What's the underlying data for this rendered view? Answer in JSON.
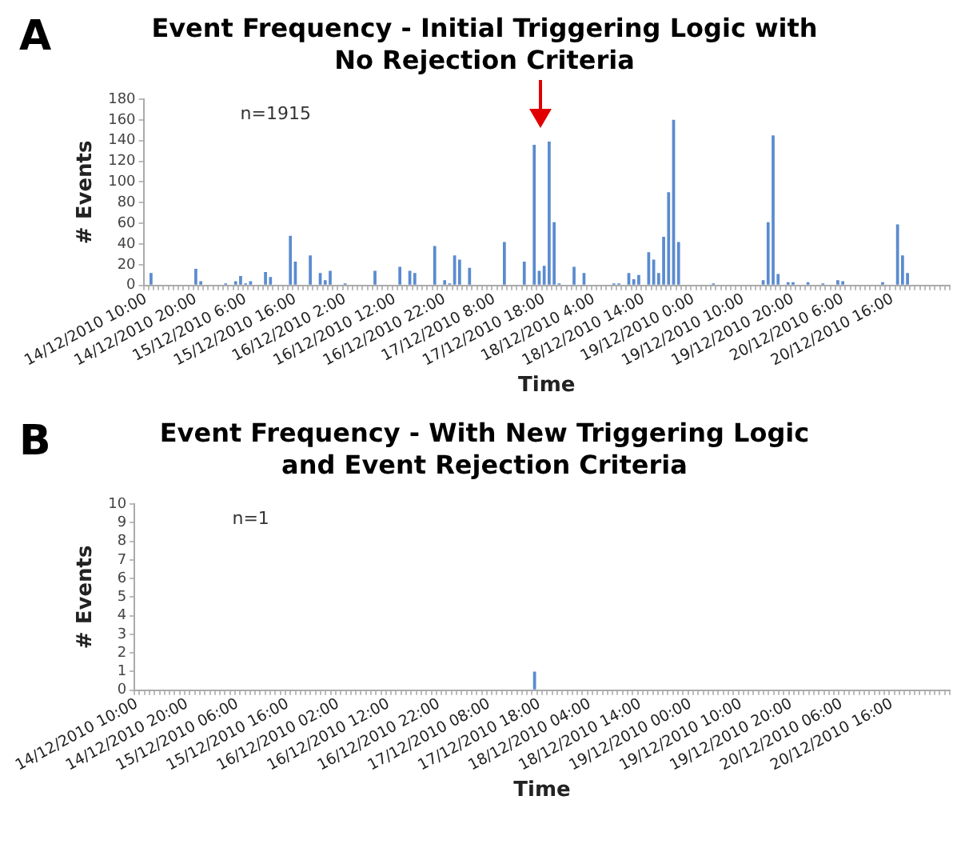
{
  "chart_data": [
    {
      "type": "bar",
      "title": "Event Frequency - Initial Triggering Logic with No Rejection Criteria",
      "xlabel": "Time",
      "ylabel": "# Events",
      "annotations": [
        "A",
        "n=1915"
      ],
      "color": "#5b8bd0",
      "legend": false,
      "ylim": [
        0,
        180
      ],
      "yticks": [
        0,
        20,
        40,
        60,
        80,
        100,
        120,
        140,
        160,
        180
      ],
      "categories": [
        "14/12/2010 10:00",
        null,
        null,
        null,
        null,
        null,
        null,
        null,
        null,
        null,
        "14/12/2010 20:00",
        null,
        null,
        null,
        null,
        null,
        null,
        null,
        null,
        null,
        "15/12/2010 6:00",
        null,
        null,
        null,
        null,
        null,
        null,
        null,
        null,
        null,
        "15/12/2010 16:00",
        null,
        null,
        null,
        null,
        null,
        null,
        null,
        null,
        null,
        "16/12/2010 2:00",
        null,
        null,
        null,
        null,
        null,
        null,
        null,
        null,
        null,
        "16/12/2010 12:00",
        null,
        null,
        null,
        null,
        null,
        null,
        null,
        null,
        null,
        "16/12/2010 22:00",
        null,
        null,
        null,
        null,
        null,
        null,
        null,
        null,
        null,
        "17/12/2010 8:00",
        null,
        null,
        null,
        null,
        null,
        null,
        null,
        null,
        null,
        "17/12/2010 18:00",
        null,
        null,
        null,
        null,
        null,
        null,
        null,
        null,
        null,
        "18/12/2010 4:00",
        null,
        null,
        null,
        null,
        null,
        null,
        null,
        null,
        null,
        "18/12/2010 14:00",
        null,
        null,
        null,
        null,
        null,
        null,
        null,
        null,
        null,
        "19/12/2010 0:00",
        null,
        null,
        null,
        null,
        null,
        null,
        null,
        null,
        null,
        "19/12/2010 10:00",
        null,
        null,
        null,
        null,
        null,
        null,
        null,
        null,
        null,
        "19/12/2010 20:00",
        null,
        null,
        null,
        null,
        null,
        null,
        null,
        null,
        null,
        "20/12/2010 6:00",
        null,
        null,
        null,
        null,
        null,
        null,
        null,
        null,
        null,
        "20/12/2010 16:00",
        null,
        null,
        null,
        null,
        null,
        null,
        null,
        null,
        null,
        null,
        null
      ],
      "values": [
        0,
        12,
        0,
        0,
        0,
        0,
        0,
        0,
        0,
        0,
        16,
        4,
        0,
        0,
        0,
        0,
        2,
        0,
        4,
        9,
        2,
        4,
        0,
        0,
        13,
        8,
        0,
        0,
        0,
        48,
        23,
        0,
        0,
        29,
        0,
        12,
        5,
        14,
        0,
        0,
        2,
        0,
        0,
        0,
        0,
        0,
        14,
        0,
        0,
        0,
        0,
        18,
        0,
        14,
        12,
        0,
        0,
        0,
        38,
        0,
        5,
        2,
        29,
        25,
        0,
        17,
        0,
        0,
        0,
        0,
        0,
        0,
        42,
        0,
        0,
        0,
        23,
        0,
        136,
        14,
        19,
        139,
        61,
        2,
        0,
        0,
        18,
        0,
        12,
        0,
        0,
        0,
        0,
        0,
        2,
        2,
        0,
        12,
        6,
        10,
        0,
        32,
        25,
        12,
        47,
        90,
        160,
        42,
        0,
        0,
        0,
        0,
        0,
        0,
        2,
        0,
        0,
        0,
        0,
        0,
        0,
        0,
        0,
        0,
        5,
        61,
        145,
        11,
        0,
        3,
        3,
        0,
        0,
        3,
        0,
        0,
        2,
        0,
        0,
        5,
        4,
        0,
        0,
        0,
        0,
        0,
        0,
        0,
        3,
        0,
        0,
        59,
        29,
        12,
        0,
        0,
        0,
        0,
        0,
        0,
        0,
        0
      ]
    },
    {
      "type": "bar",
      "title": "Event Frequency - With New Triggering Logic and Event Rejection Criteria",
      "xlabel": "Time",
      "ylabel": "# Events",
      "annotations": [
        "B",
        "n=1"
      ],
      "color": "#5b8bd0",
      "legend": false,
      "ylim": [
        0,
        10
      ],
      "yticks": [
        0,
        1,
        2,
        3,
        4,
        5,
        6,
        7,
        8,
        9,
        10
      ],
      "categories": [
        "14/12/2010 10:00",
        null,
        null,
        null,
        null,
        null,
        null,
        null,
        null,
        null,
        "14/12/2010 20:00",
        null,
        null,
        null,
        null,
        null,
        null,
        null,
        null,
        null,
        "15/12/2010 06:00",
        null,
        null,
        null,
        null,
        null,
        null,
        null,
        null,
        null,
        "15/12/2010 16:00",
        null,
        null,
        null,
        null,
        null,
        null,
        null,
        null,
        null,
        "16/12/2010 02:00",
        null,
        null,
        null,
        null,
        null,
        null,
        null,
        null,
        null,
        "16/12/2010 12:00",
        null,
        null,
        null,
        null,
        null,
        null,
        null,
        null,
        null,
        "16/12/2010 22:00",
        null,
        null,
        null,
        null,
        null,
        null,
        null,
        null,
        null,
        "17/12/2010 08:00",
        null,
        null,
        null,
        null,
        null,
        null,
        null,
        null,
        null,
        "17/12/2010 18:00",
        null,
        null,
        null,
        null,
        null,
        null,
        null,
        null,
        null,
        "18/12/2010 04:00",
        null,
        null,
        null,
        null,
        null,
        null,
        null,
        null,
        null,
        "18/12/2010 14:00",
        null,
        null,
        null,
        null,
        null,
        null,
        null,
        null,
        null,
        "19/12/2010 00:00",
        null,
        null,
        null,
        null,
        null,
        null,
        null,
        null,
        null,
        "19/12/2010 10:00",
        null,
        null,
        null,
        null,
        null,
        null,
        null,
        null,
        null,
        "19/12/2010 20:00",
        null,
        null,
        null,
        null,
        null,
        null,
        null,
        null,
        null,
        "20/12/2010 06:00",
        null,
        null,
        null,
        null,
        null,
        null,
        null,
        null,
        null,
        "20/12/2010 16:00",
        null,
        null,
        null,
        null,
        null,
        null,
        null,
        null,
        null,
        null,
        null
      ],
      "values": [
        0,
        0,
        0,
        0,
        0,
        0,
        0,
        0,
        0,
        0,
        0,
        0,
        0,
        0,
        0,
        0,
        0,
        0,
        0,
        0,
        0,
        0,
        0,
        0,
        0,
        0,
        0,
        0,
        0,
        0,
        0,
        0,
        0,
        0,
        0,
        0,
        0,
        0,
        0,
        0,
        0,
        0,
        0,
        0,
        0,
        0,
        0,
        0,
        0,
        0,
        0,
        0,
        0,
        0,
        0,
        0,
        0,
        0,
        0,
        0,
        0,
        0,
        0,
        0,
        0,
        0,
        0,
        0,
        0,
        0,
        0,
        0,
        0,
        0,
        0,
        0,
        0,
        0,
        0,
        1,
        0,
        0,
        0,
        0,
        0,
        0,
        0,
        0,
        0,
        0,
        0,
        0,
        0,
        0,
        0,
        0,
        0,
        0,
        0,
        0,
        0,
        0,
        0,
        0,
        0,
        0,
        0,
        0,
        0,
        0,
        0,
        0,
        0,
        0,
        0,
        0,
        0,
        0,
        0,
        0,
        0,
        0,
        0,
        0,
        0,
        0,
        0,
        0,
        0,
        0,
        0,
        0,
        0,
        0,
        0,
        0,
        0,
        0,
        0,
        0,
        0,
        0,
        0,
        0,
        0,
        0,
        0,
        0,
        0,
        0,
        0,
        0,
        0,
        0,
        0,
        0,
        0,
        0,
        0,
        0,
        0,
        0
      ]
    }
  ]
}
